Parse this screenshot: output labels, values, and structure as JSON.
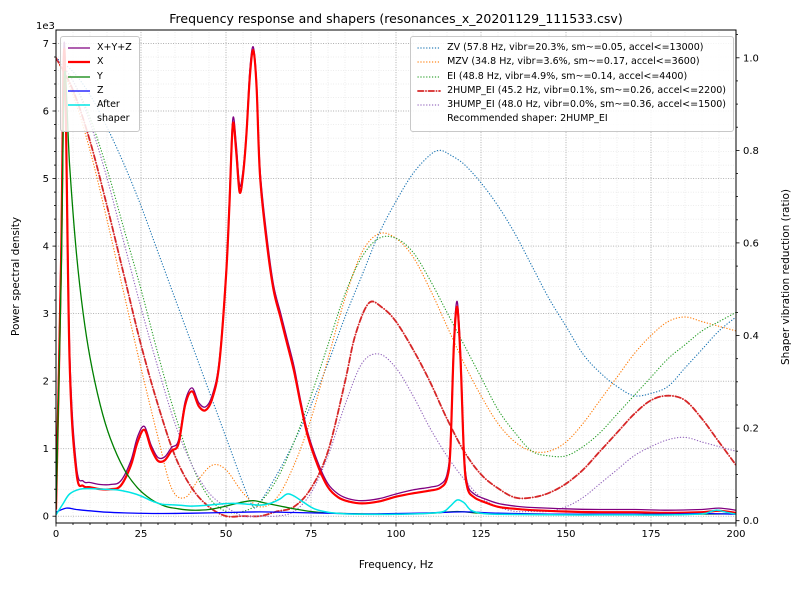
{
  "figure": {
    "background": "#ffffff"
  },
  "chart_data": {
    "type": "line",
    "title": "Frequency response and shapers (resonances_x_20201129_111533.csv)",
    "xlabel": "Frequency, Hz",
    "ylabel": "Power spectral density",
    "ylabel2": "Shaper vibration reduction (ratio)",
    "y_offset_text": "1e3",
    "recommended_note": "Recommended shaper: 2HUMP_EI",
    "xlim": [
      0,
      200
    ],
    "ylim": [
      0,
      7000
    ],
    "ylim2": [
      0,
      1.0
    ],
    "grid": "both",
    "minor_x_step": 5,
    "minor_y_step": 200,
    "xticks": {
      "values": [
        0,
        25,
        50,
        75,
        100,
        125,
        150,
        175,
        200
      ],
      "labels": [
        "0",
        "25",
        "50",
        "75",
        "100",
        "125",
        "150",
        "175",
        "200"
      ]
    },
    "yticks_left": {
      "values": [
        0,
        1000,
        2000,
        3000,
        4000,
        5000,
        6000,
        7000
      ],
      "labels": [
        "0",
        "1",
        "2",
        "3",
        "4",
        "5",
        "6",
        "7"
      ]
    },
    "yticks_right": {
      "values": [
        0,
        0.2,
        0.4,
        0.6,
        0.8,
        1.0
      ],
      "labels": [
        "0.0",
        "0.2",
        "0.4",
        "0.6",
        "0.8",
        "1.0"
      ]
    },
    "legend_positions": {
      "psd": "upper left",
      "shapers": "upper right"
    },
    "psd_series": [
      {
        "name": "X+Y+Z",
        "legend": "X+Y+Z",
        "color": "#800080",
        "style": "solid",
        "width": 1.3,
        "axis": "left",
        "x": [
          0,
          1.5,
          2.5,
          4,
          6,
          8,
          10,
          13,
          16,
          19,
          22,
          24,
          26,
          28,
          30,
          32,
          34,
          36,
          38,
          40,
          42,
          44,
          46,
          48,
          50,
          51,
          52,
          53,
          54,
          55,
          56,
          57,
          58,
          59,
          60,
          62,
          64,
          66,
          68,
          70,
          72,
          74,
          77,
          80,
          83,
          86,
          90,
          95,
          100,
          105,
          110,
          113,
          115,
          116,
          117,
          118,
          119,
          120,
          121,
          123,
          126,
          130,
          135,
          140,
          150,
          160,
          170,
          180,
          190,
          195,
          200
        ],
        "y": [
          150,
          4000,
          7000,
          2500,
          750,
          520,
          500,
          470,
          470,
          520,
          820,
          1180,
          1330,
          1050,
          870,
          880,
          1020,
          1120,
          1700,
          1900,
          1680,
          1620,
          1800,
          2300,
          3600,
          4700,
          5880,
          5520,
          4900,
          5120,
          5700,
          6600,
          6950,
          6420,
          5150,
          4150,
          3420,
          3020,
          2620,
          2220,
          1700,
          1250,
          800,
          480,
          330,
          260,
          230,
          260,
          330,
          390,
          430,
          470,
          620,
          1100,
          2600,
          3180,
          2400,
          1000,
          480,
          330,
          260,
          190,
          150,
          130,
          110,
          100,
          100,
          90,
          100,
          120,
          90
        ]
      },
      {
        "name": "X",
        "legend": "X",
        "color": "#ff0000",
        "style": "solid",
        "width": 2.2,
        "axis": "left",
        "x": [
          0,
          1.5,
          2.5,
          4,
          6,
          8,
          10,
          13,
          16,
          19,
          22,
          24,
          26,
          28,
          30,
          32,
          34,
          36,
          38,
          40,
          42,
          44,
          46,
          48,
          50,
          51,
          52,
          53,
          54,
          55,
          56,
          57,
          58,
          59,
          60,
          62,
          64,
          66,
          68,
          70,
          72,
          74,
          77,
          80,
          83,
          86,
          90,
          95,
          100,
          105,
          110,
          113,
          115,
          116,
          117,
          118,
          119,
          120,
          121,
          123,
          126,
          130,
          135,
          140,
          150,
          160,
          170,
          180,
          190,
          195,
          200
        ],
        "y": [
          100,
          3800,
          6900,
          2300,
          650,
          450,
          430,
          400,
          400,
          450,
          750,
          1100,
          1280,
          1000,
          820,
          830,
          970,
          1070,
          1650,
          1850,
          1630,
          1570,
          1750,
          2250,
          3550,
          4600,
          5800,
          5400,
          4800,
          5050,
          5650,
          6500,
          6900,
          6350,
          5050,
          4050,
          3350,
          2950,
          2550,
          2150,
          1650,
          1200,
          750,
          430,
          280,
          220,
          190,
          220,
          290,
          340,
          380,
          420,
          560,
          1000,
          2500,
          3100,
          2300,
          900,
          420,
          280,
          210,
          140,
          110,
          90,
          70,
          60,
          60,
          50,
          60,
          80,
          50
        ]
      },
      {
        "name": "Y",
        "legend": "Y",
        "color": "#008000",
        "style": "solid",
        "width": 1.3,
        "axis": "left",
        "x": [
          0,
          1.5,
          2.5,
          4,
          6,
          8,
          10,
          13,
          16,
          20,
          24,
          28,
          32,
          36,
          40,
          45,
          50,
          54,
          58,
          62,
          66,
          70,
          75,
          80,
          90,
          100,
          110,
          118,
          125,
          135,
          150,
          165,
          180,
          200
        ],
        "y": [
          120,
          3500,
          6550,
          5200,
          3900,
          3000,
          2350,
          1650,
          1150,
          700,
          420,
          250,
          150,
          110,
          90,
          100,
          150,
          200,
          230,
          190,
          150,
          110,
          70,
          50,
          35,
          35,
          45,
          70,
          45,
          35,
          30,
          30,
          30,
          35
        ]
      },
      {
        "name": "Z",
        "legend": "Z",
        "color": "#0000ff",
        "style": "solid",
        "width": 1.3,
        "axis": "left",
        "x": [
          0,
          3,
          6,
          10,
          15,
          20,
          30,
          40,
          50,
          60,
          70,
          80,
          90,
          100,
          110,
          120,
          130,
          140,
          150,
          160,
          170,
          180,
          190,
          200
        ],
        "y": [
          60,
          120,
          100,
          80,
          60,
          50,
          40,
          45,
          55,
          65,
          55,
          45,
          35,
          40,
          50,
          65,
          45,
          35,
          30,
          30,
          30,
          30,
          40,
          30
        ]
      },
      {
        "name": "After shaper",
        "legend": "After\nshaper",
        "color": "#00e5e5",
        "style": "solid",
        "width": 1.5,
        "axis": "left",
        "x": [
          0,
          2,
          4,
          7,
          10,
          14,
          18,
          22,
          25,
          28,
          31,
          34,
          37,
          40,
          44,
          48,
          52,
          56,
          60,
          63,
          66,
          68,
          70,
          73,
          76,
          80,
          85,
          90,
          100,
          110,
          114,
          116,
          118,
          120,
          122,
          125,
          130,
          140,
          150,
          160,
          170,
          180,
          190,
          194,
          197,
          200
        ],
        "y": [
          20,
          180,
          330,
          400,
          410,
          400,
          390,
          350,
          300,
          230,
          180,
          170,
          160,
          150,
          160,
          180,
          190,
          180,
          165,
          190,
          260,
          330,
          300,
          200,
          110,
          60,
          35,
          30,
          30,
          45,
          70,
          150,
          240,
          200,
          90,
          45,
          30,
          25,
          20,
          20,
          20,
          20,
          35,
          90,
          60,
          30
        ]
      }
    ],
    "shaper_series": [
      {
        "name": "ZV",
        "label": "ZV (57.8 Hz, vibr=20.3%, sm~=0.05, accel<=13000)",
        "color": "#1f77b4",
        "style": "dotted",
        "width": 1.2,
        "axis": "right",
        "x": [
          0,
          5,
          10,
          15,
          20,
          25,
          30,
          35,
          40,
          45,
          50,
          55,
          58,
          60,
          65,
          70,
          75,
          80,
          85,
          90,
          95,
          100,
          105,
          110,
          113,
          116,
          120,
          125,
          130,
          135,
          140,
          145,
          150,
          155,
          160,
          165,
          170,
          175,
          180,
          185,
          190,
          195,
          200
        ],
        "y": [
          1.0,
          0.97,
          0.92,
          0.85,
          0.77,
          0.68,
          0.58,
          0.48,
          0.38,
          0.28,
          0.18,
          0.08,
          0.03,
          0.04,
          0.1,
          0.17,
          0.25,
          0.34,
          0.44,
          0.53,
          0.62,
          0.69,
          0.75,
          0.79,
          0.8,
          0.79,
          0.77,
          0.73,
          0.68,
          0.62,
          0.55,
          0.48,
          0.42,
          0.36,
          0.32,
          0.29,
          0.27,
          0.275,
          0.29,
          0.33,
          0.37,
          0.41,
          0.44
        ]
      },
      {
        "name": "MZV",
        "label": "MZV (34.8 Hz, vibr=3.6%, sm~=0.17, accel<=3600)",
        "color": "#ff7f0e",
        "style": "dotted",
        "width": 1.2,
        "axis": "right",
        "x": [
          0,
          5,
          10,
          15,
          20,
          25,
          30,
          34,
          38,
          42,
          46,
          50,
          55,
          60,
          65,
          70,
          75,
          80,
          85,
          90,
          95,
          100,
          105,
          110,
          115,
          120,
          125,
          130,
          135,
          140,
          145,
          150,
          155,
          160,
          165,
          170,
          175,
          180,
          185,
          190,
          195,
          200
        ],
        "y": [
          1.0,
          0.92,
          0.8,
          0.65,
          0.49,
          0.33,
          0.18,
          0.07,
          0.05,
          0.09,
          0.12,
          0.11,
          0.06,
          0.03,
          0.05,
          0.12,
          0.22,
          0.35,
          0.48,
          0.58,
          0.62,
          0.61,
          0.57,
          0.5,
          0.42,
          0.34,
          0.27,
          0.21,
          0.17,
          0.15,
          0.15,
          0.17,
          0.21,
          0.26,
          0.31,
          0.36,
          0.4,
          0.43,
          0.44,
          0.43,
          0.42,
          0.41
        ]
      },
      {
        "name": "EI",
        "label": "EI (48.8 Hz, vibr=4.9%, sm~=0.14, accel<=4400)",
        "color": "#2ca02c",
        "style": "dotted",
        "width": 1.2,
        "axis": "right",
        "x": [
          0,
          5,
          10,
          15,
          20,
          25,
          30,
          35,
          40,
          45,
          50,
          55,
          60,
          65,
          70,
          75,
          80,
          85,
          90,
          95,
          100,
          105,
          110,
          115,
          120,
          125,
          130,
          135,
          140,
          145,
          150,
          155,
          160,
          165,
          170,
          175,
          180,
          185,
          190,
          195,
          200
        ],
        "y": [
          1.0,
          0.95,
          0.87,
          0.76,
          0.63,
          0.5,
          0.36,
          0.23,
          0.12,
          0.05,
          0.02,
          0.02,
          0.04,
          0.09,
          0.17,
          0.27,
          0.38,
          0.49,
          0.57,
          0.61,
          0.61,
          0.58,
          0.52,
          0.45,
          0.38,
          0.31,
          0.24,
          0.19,
          0.15,
          0.14,
          0.14,
          0.16,
          0.19,
          0.23,
          0.27,
          0.31,
          0.35,
          0.38,
          0.41,
          0.43,
          0.45
        ]
      },
      {
        "name": "2HUMP_EI",
        "label": "2HUMP_EI (45.2 Hz, vibr=0.1%, sm~=0.26, accel<=2200)",
        "color": "#d62728",
        "style": "dashdot",
        "width": 1.8,
        "axis": "right",
        "x": [
          0,
          5,
          10,
          15,
          20,
          25,
          30,
          35,
          40,
          45,
          50,
          55,
          60,
          65,
          70,
          75,
          80,
          85,
          88,
          92,
          96,
          100,
          105,
          110,
          115,
          120,
          125,
          130,
          135,
          140,
          145,
          150,
          155,
          160,
          165,
          170,
          175,
          180,
          185,
          190,
          195,
          200
        ],
        "y": [
          1.0,
          0.93,
          0.82,
          0.68,
          0.53,
          0.38,
          0.25,
          0.14,
          0.07,
          0.03,
          0.01,
          0.01,
          0.01,
          0.02,
          0.03,
          0.07,
          0.15,
          0.3,
          0.4,
          0.47,
          0.46,
          0.43,
          0.37,
          0.3,
          0.22,
          0.15,
          0.1,
          0.07,
          0.05,
          0.05,
          0.06,
          0.08,
          0.11,
          0.15,
          0.19,
          0.23,
          0.26,
          0.27,
          0.26,
          0.22,
          0.17,
          0.12
        ]
      },
      {
        "name": "3HUMP_EI",
        "label": "3HUMP_EI (48.0 Hz, vibr=0.0%, sm~=0.36, accel<=1500)",
        "color": "#9467bd",
        "style": "dotted",
        "width": 1.2,
        "axis": "right",
        "x": [
          0,
          5,
          10,
          15,
          20,
          25,
          30,
          35,
          40,
          45,
          50,
          55,
          60,
          65,
          70,
          75,
          80,
          85,
          90,
          95,
          100,
          105,
          110,
          115,
          120,
          125,
          130,
          135,
          140,
          145,
          150,
          155,
          160,
          165,
          170,
          175,
          180,
          185,
          190,
          195,
          200
        ],
        "y": [
          1.0,
          0.95,
          0.86,
          0.74,
          0.6,
          0.46,
          0.33,
          0.21,
          0.12,
          0.06,
          0.03,
          0.01,
          0.01,
          0.01,
          0.02,
          0.06,
          0.14,
          0.25,
          0.34,
          0.36,
          0.33,
          0.27,
          0.2,
          0.14,
          0.09,
          0.05,
          0.03,
          0.02,
          0.02,
          0.02,
          0.03,
          0.05,
          0.08,
          0.11,
          0.14,
          0.16,
          0.175,
          0.18,
          0.17,
          0.16,
          0.15
        ]
      }
    ]
  }
}
